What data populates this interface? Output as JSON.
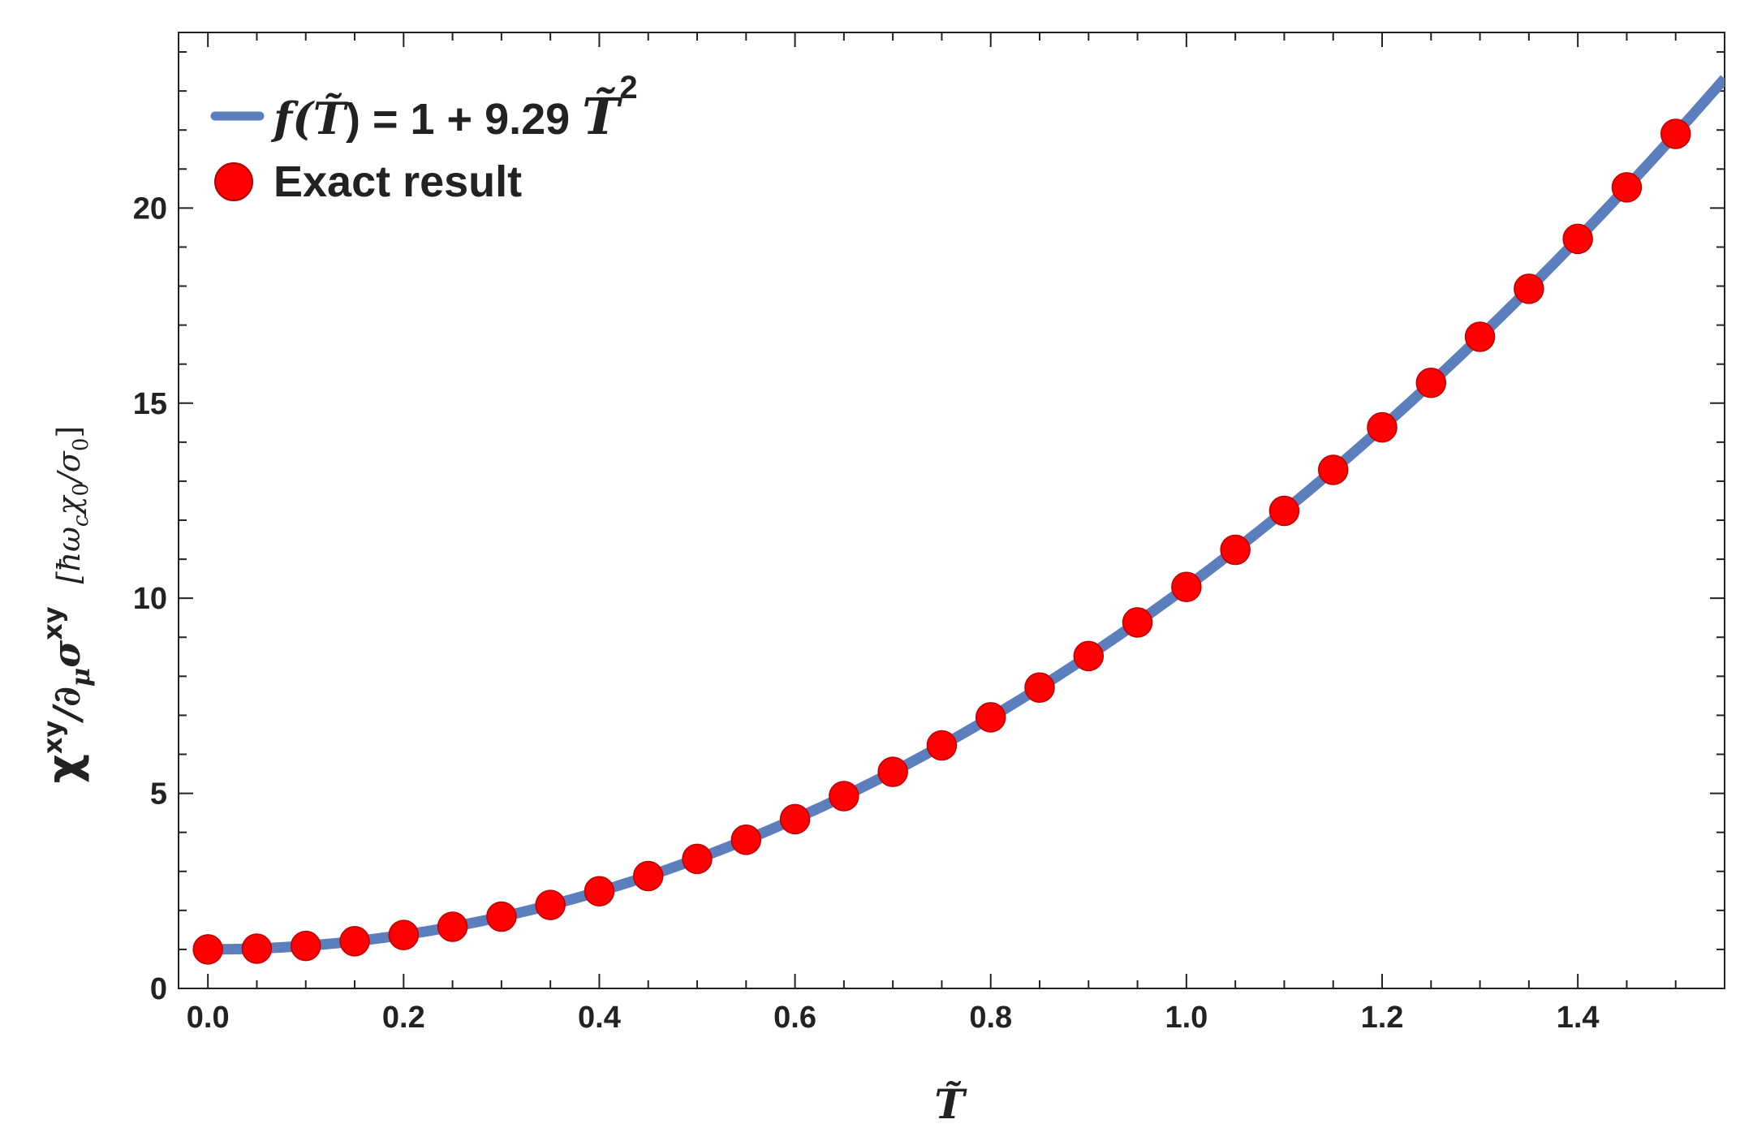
{
  "chart_data": {
    "type": "scatter",
    "xlabel": "T̃",
    "ylabel": "χxy/∂μσxy [ħωcχ0/σ0]",
    "ylabel_parts": {
      "main": "χ",
      "sup1": "xy",
      "mid": "/∂",
      "sub_mu": "μ",
      "sigma": "σ",
      "sup2": "xy",
      "unit_open": "[ħω",
      "unit_c": "c",
      "unit_chi": "χ",
      "unit_0a": "0",
      "unit_div": "/σ",
      "unit_0b": "0",
      "unit_close": "]"
    },
    "xlim": [
      -0.03,
      1.55
    ],
    "ylim": [
      0,
      24.5
    ],
    "x_ticks": [
      0.0,
      0.2,
      0.4,
      0.6,
      0.8,
      1.0,
      1.2,
      1.4
    ],
    "x_tick_labels": [
      "0.0",
      "0.2",
      "0.4",
      "0.6",
      "0.8",
      "1.0",
      "1.2",
      "1.4"
    ],
    "y_ticks": [
      0,
      5,
      10,
      15,
      20
    ],
    "y_tick_labels": [
      "0",
      "5",
      "10",
      "15",
      "20"
    ],
    "grid": false,
    "legend_position": "top-left",
    "series": [
      {
        "name": "f(T̃) = 1 + 9.29 T̃²",
        "kind": "line",
        "color": "#5b7fbd",
        "formula": {
          "a": 1,
          "b": 9.29
        },
        "x_range": [
          0,
          1.55
        ]
      },
      {
        "name": "Exact result",
        "kind": "scatter",
        "color": "#ff0000",
        "x": [
          0.0,
          0.05,
          0.1,
          0.15,
          0.2,
          0.25,
          0.3,
          0.35,
          0.4,
          0.45,
          0.5,
          0.55,
          0.6,
          0.65,
          0.7,
          0.75,
          0.8,
          0.85,
          0.9,
          0.95,
          1.0,
          1.05,
          1.1,
          1.15,
          1.2,
          1.25,
          1.3,
          1.35,
          1.4,
          1.45,
          1.5
        ],
        "y": [
          1.0,
          1.02,
          1.09,
          1.21,
          1.37,
          1.58,
          1.84,
          2.14,
          2.49,
          2.88,
          3.32,
          3.81,
          4.34,
          4.93,
          5.55,
          6.23,
          6.95,
          7.71,
          8.52,
          9.38,
          10.29,
          11.24,
          12.24,
          13.29,
          14.38,
          15.52,
          16.7,
          17.93,
          19.21,
          20.53,
          21.9
        ]
      }
    ],
    "legend": {
      "line_prefix": "f(",
      "line_var": "T̃",
      "line_mid": ") = 1 + 9.29 ",
      "line_var2": "T̃",
      "line_exp": "2",
      "scatter_label": "Exact result"
    }
  }
}
